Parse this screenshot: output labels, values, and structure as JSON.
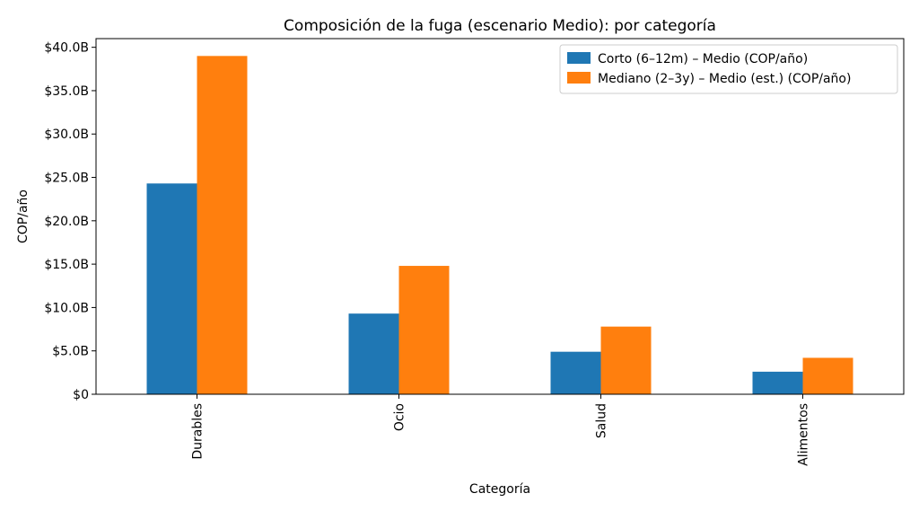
{
  "chart_data": {
    "type": "bar",
    "title": "Composición de la fuga (escenario Medio): por categoría",
    "xlabel": "Categoría",
    "ylabel": "COP/año",
    "categories": [
      "Durables",
      "Ocio",
      "Salud",
      "Alimentos"
    ],
    "series": [
      {
        "name": "Corto (6–12m) – Medio (COP/año)",
        "color": "#1f77b4",
        "values": [
          24.3,
          9.3,
          4.9,
          2.6
        ]
      },
      {
        "name": "Mediano (2–3y) – Medio (est.) (COP/año)",
        "color": "#ff7f0e",
        "values": [
          39.0,
          14.8,
          7.8,
          4.2
        ]
      }
    ],
    "ylim": [
      0,
      41
    ],
    "yunit_scale": "billions",
    "yticks": [
      0,
      5,
      10,
      15,
      20,
      25,
      30,
      35,
      40
    ],
    "ytick_labels": [
      "$0",
      "$5.0B",
      "$10.0B",
      "$15.0B",
      "$20.0B",
      "$25.0B",
      "$30.0B",
      "$35.0B",
      "$40.0B"
    ],
    "grid": false,
    "legend_position": "top-right"
  }
}
